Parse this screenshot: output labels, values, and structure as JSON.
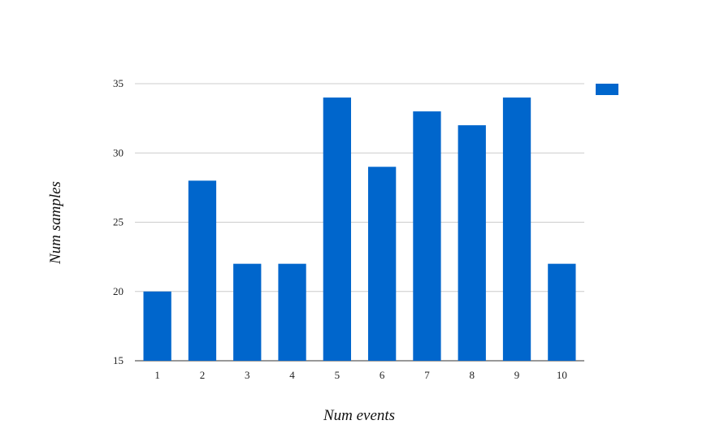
{
  "chart_data": {
    "type": "bar",
    "categories": [
      "1",
      "2",
      "3",
      "4",
      "5",
      "6",
      "7",
      "8",
      "9",
      "10"
    ],
    "series": [
      {
        "values": [
          20,
          28,
          22,
          22,
          34,
          29,
          33,
          32,
          34,
          22
        ]
      }
    ],
    "xlabel": "Num events",
    "ylabel": "Num samples",
    "ylim": [
      15,
      35
    ],
    "yticks": [
      "15",
      "20",
      "25",
      "30",
      "35"
    ],
    "grid": true,
    "legend": "top-right",
    "colors": {
      "bar": "#0066cc",
      "grid": "#cccccc"
    }
  }
}
